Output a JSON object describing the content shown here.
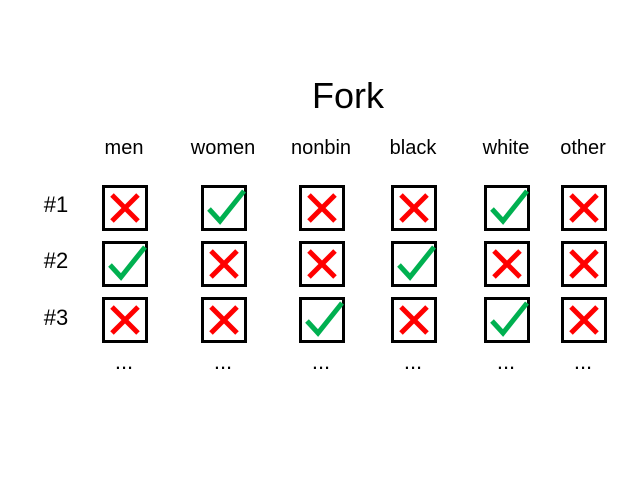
{
  "title": "Fork",
  "columns": [
    "men",
    "women",
    "nonbin",
    "black",
    "white",
    "other"
  ],
  "rows": [
    {
      "label": "#1",
      "values": [
        "cross",
        "check",
        "cross",
        "cross",
        "check",
        "cross"
      ]
    },
    {
      "label": "#2",
      "values": [
        "check",
        "cross",
        "cross",
        "check",
        "cross",
        "cross"
      ]
    },
    {
      "label": "#3",
      "values": [
        "cross",
        "cross",
        "check",
        "cross",
        "check",
        "cross"
      ]
    }
  ],
  "ellipsis": "...",
  "colors": {
    "check": "#00b050",
    "cross": "#ff0000",
    "border": "#000000"
  },
  "icons": {
    "check": "check-icon",
    "cross": "cross-icon"
  }
}
